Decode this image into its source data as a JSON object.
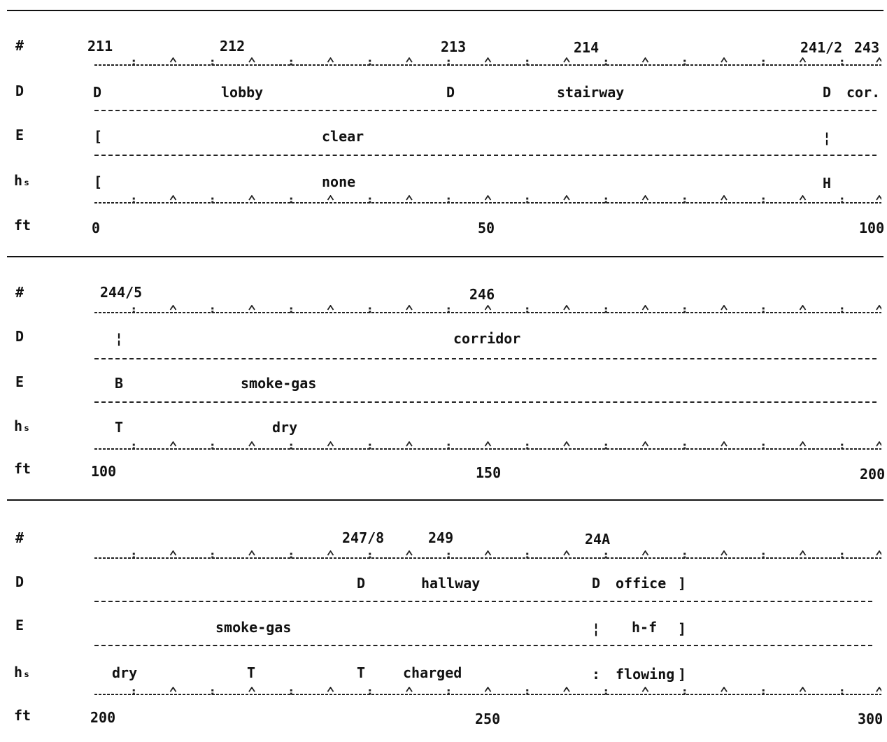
{
  "row_labels": {
    "room": "#",
    "D": "D",
    "E": "E",
    "h": "hₛ",
    "ft": "ft"
  },
  "sections": [
    {
      "rooms": [
        "211",
        "212",
        "213",
        "214",
        "241/2",
        "243"
      ],
      "D": {
        "a": "D",
        "b": "lobby",
        "c": "D",
        "d": "stairway",
        "e": "D",
        "f": "cor."
      },
      "E": {
        "a": "[",
        "b": "clear",
        "c": "¦"
      },
      "h": {
        "a": "[",
        "b": "none",
        "c": "H"
      },
      "ft": [
        "0",
        "50",
        "100"
      ]
    },
    {
      "rooms": [
        "244/5",
        "246"
      ],
      "D": {
        "a": "¦",
        "b": "corridor"
      },
      "E": {
        "a": "B",
        "b": "smoke-gas"
      },
      "h": {
        "a": "T",
        "b": "dry"
      },
      "ft": [
        "100",
        "150",
        "200"
      ]
    },
    {
      "rooms": [
        "247/8",
        "249",
        "24A"
      ],
      "D": {
        "a": "D",
        "b": "hallway",
        "c": "D",
        "d": "office",
        "e": "]"
      },
      "E": {
        "a": "smoke-gas",
        "b": "¦",
        "c": "h-f",
        "d": "]"
      },
      "h": {
        "a": "dry",
        "b": "T",
        "c": "T",
        "d": "charged",
        "e": ":",
        "f": "flowing",
        "g": "]"
      },
      "ft": [
        "200",
        "250",
        "300"
      ]
    }
  ]
}
